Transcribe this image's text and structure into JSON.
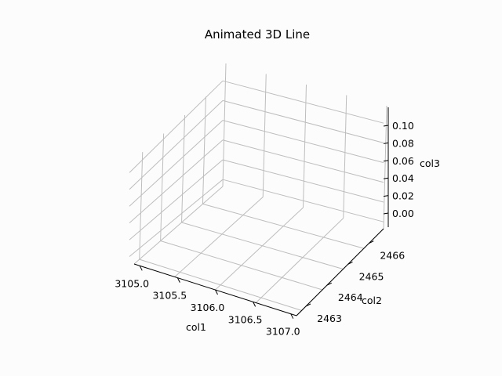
{
  "chart_data": {
    "type": "line",
    "title": "Animated 3D Line",
    "xlabel": "col1",
    "ylabel": "col2",
    "zlabel": "col3",
    "x_ticks": [
      "3105.0",
      "3105.5",
      "3106.0",
      "3106.5",
      "3107.0"
    ],
    "y_ticks": [
      "2463",
      "2464",
      "2465",
      "2466"
    ],
    "z_ticks": [
      "0.00",
      "0.02",
      "0.04",
      "0.06",
      "0.08",
      "0.10"
    ],
    "xlim": [
      3105.0,
      3107.0
    ],
    "ylim": [
      2463,
      2466
    ],
    "zlim": [
      0.0,
      0.1
    ],
    "grid": true,
    "series": []
  }
}
